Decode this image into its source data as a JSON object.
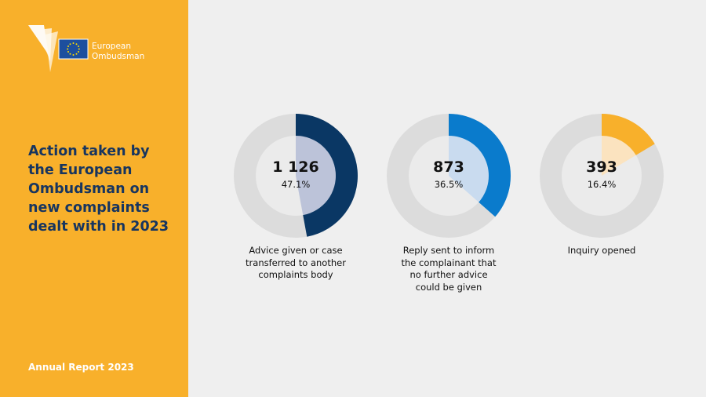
{
  "sidebar": {
    "logo_line1": "European",
    "logo_line2": "Ombudsman",
    "title": "Action taken by\nthe European\nOmbudsman on\nnew complaints\ndealt with in 2023",
    "footer": "Annual Report 2023"
  },
  "colors": {
    "sidebar_bg": "#f8b02b",
    "title": "#17355f",
    "ring_track": "#dcdcdc",
    "inner_disc": "#ebebeb"
  },
  "chart_data": {
    "type": "pie",
    "variant": "donut",
    "items": [
      {
        "value": 1126,
        "value_label": "1 126",
        "percent": 47.1,
        "percent_label": "47.1%",
        "label": "Advice given or case\ntransferred to another\ncomplaints body",
        "color": "#0a3764",
        "fill": "#bcc3d9"
      },
      {
        "value": 873,
        "value_label": "873",
        "percent": 36.5,
        "percent_label": "36.5%",
        "label": "Reply sent to inform\nthe complainant that\nno further advice\ncould be given",
        "color": "#0a7bcc",
        "fill": "#c9dbef"
      },
      {
        "value": 393,
        "value_label": "393",
        "percent": 16.4,
        "percent_label": "16.4%",
        "label": "Inquiry opened",
        "color": "#f8b02b",
        "fill": "#fbe3bf"
      }
    ]
  }
}
